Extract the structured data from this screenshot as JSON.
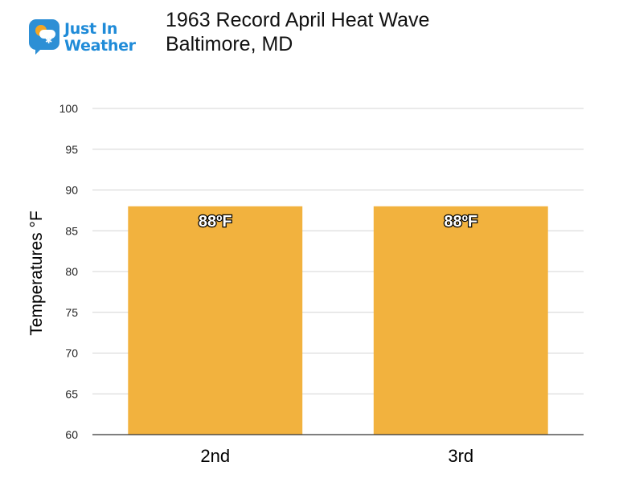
{
  "logo": {
    "text_line1": "Just In",
    "text_line2": "Weather",
    "icon": "weather-speech-bubble-icon",
    "brand_color": "#1f8bd8"
  },
  "chart_data": {
    "type": "bar",
    "title_line1": "1963 Record April Heat Wave",
    "title_line2": "Baltimore, MD",
    "xlabel": "",
    "ylabel": "Temperatures °F",
    "categories": [
      "2nd",
      "3rd"
    ],
    "values": [
      88,
      88
    ],
    "data_labels": [
      "88ºF",
      "88ºF"
    ],
    "ylim": [
      60,
      100
    ],
    "yticks": [
      60,
      65,
      70,
      75,
      80,
      85,
      90,
      95,
      100
    ],
    "grid": true,
    "legend": "none",
    "bar_color": "#f2b23e"
  }
}
